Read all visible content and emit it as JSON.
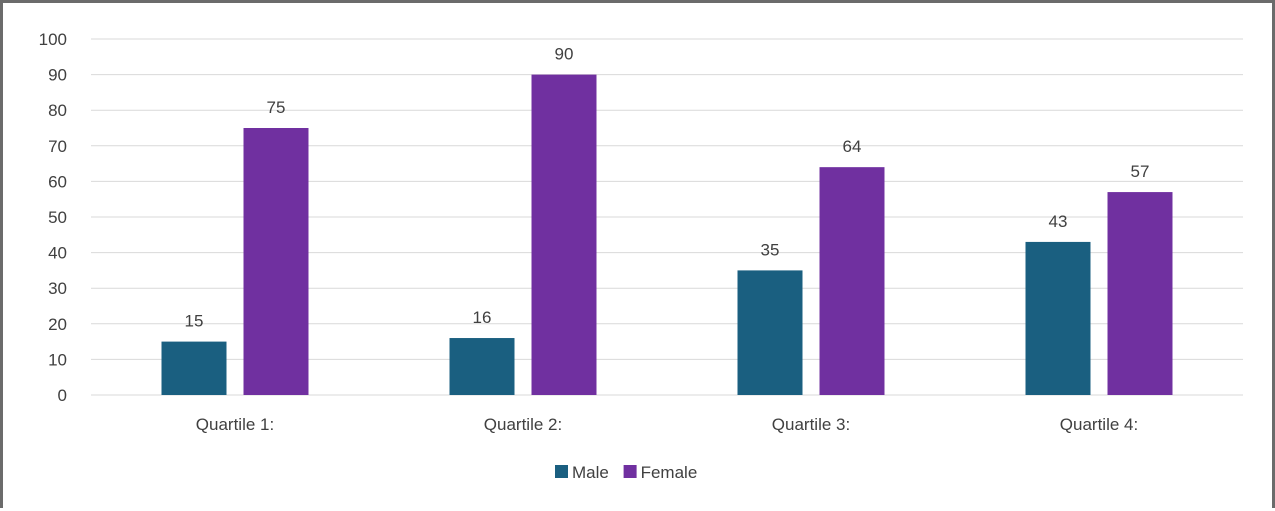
{
  "chart_data": {
    "type": "bar",
    "categories": [
      "Quartile 1:",
      "Quartile 2:",
      "Quartile 3:",
      "Quartile 4:"
    ],
    "series": [
      {
        "name": "Male",
        "values": [
          15,
          16,
          35,
          43
        ]
      },
      {
        "name": "Female",
        "values": [
          75,
          90,
          64,
          57
        ]
      }
    ],
    "title": "",
    "xlabel": "",
    "ylabel": "",
    "ylim": [
      0,
      100
    ],
    "yticks": [
      0,
      10,
      20,
      30,
      40,
      50,
      60,
      70,
      80,
      90,
      100
    ],
    "data_labels": true,
    "grid": true,
    "legend": "bottom-center",
    "colors": {
      "Male": "#1a5f80",
      "Female": "#7030a0"
    }
  }
}
